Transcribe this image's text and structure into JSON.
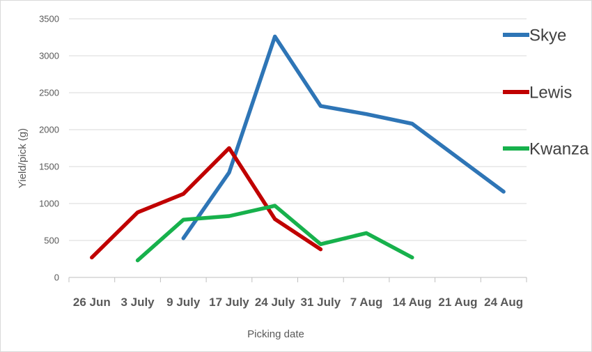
{
  "chart_data": {
    "type": "line",
    "xlabel": "Picking date",
    "ylabel": "Yield/pick (g)",
    "ylim": [
      0,
      3500
    ],
    "yticks": [
      0,
      500,
      1000,
      1500,
      2000,
      2500,
      3000,
      3500
    ],
    "categories": [
      "26 Jun",
      "3 July",
      "9 July",
      "17 July",
      "24 July",
      "31 July",
      "7 Aug",
      "14 Aug",
      "21 Aug",
      "24 Aug"
    ],
    "grid": "horizontal",
    "legend": "right",
    "series": [
      {
        "name": "Skye",
        "color": "#2e75b6",
        "points": [
          [
            2,
            530
          ],
          [
            3,
            1420
          ],
          [
            4,
            3260
          ],
          [
            5,
            2320
          ],
          [
            6,
            2210
          ],
          [
            7,
            2080
          ],
          [
            9,
            1160
          ]
        ]
      },
      {
        "name": "Lewis",
        "color": "#c00000",
        "points": [
          [
            0,
            270
          ],
          [
            1,
            880
          ],
          [
            2,
            1130
          ],
          [
            3,
            1750
          ],
          [
            4,
            790
          ],
          [
            5,
            380
          ]
        ]
      },
      {
        "name": "Kwanza",
        "color": "#17b14c",
        "points": [
          [
            1,
            230
          ],
          [
            2,
            780
          ],
          [
            3,
            830
          ],
          [
            4,
            970
          ],
          [
            5,
            450
          ],
          [
            6,
            600
          ],
          [
            7,
            270
          ]
        ]
      }
    ]
  }
}
